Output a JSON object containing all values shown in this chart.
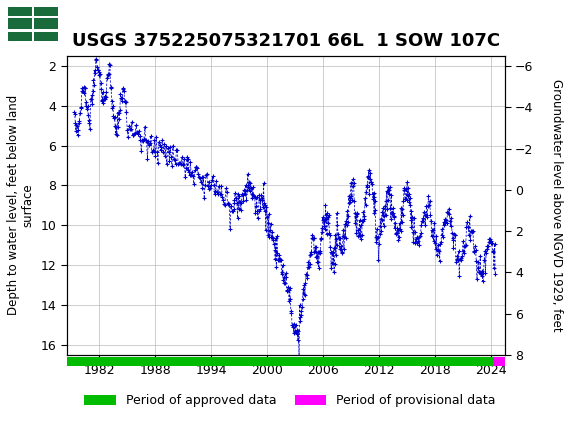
{
  "title": "USGS 375225075321701 66L  1 SOW 107C",
  "ylabel_left": "Depth to water level, feet below land\nsurface",
  "ylabel_right": "Groundwater level above NGVD 1929, feet",
  "ylim_left": [
    16.5,
    1.5
  ],
  "ylim_right": [
    6.5,
    -6.5
  ],
  "yticks_left": [
    2,
    4,
    6,
    8,
    10,
    12,
    14,
    16
  ],
  "yticks_right": [
    8,
    6,
    4,
    2,
    0,
    -2,
    -4,
    -6
  ],
  "xlim": [
    1978.5,
    2025.5
  ],
  "xticks": [
    1982,
    1988,
    1994,
    2000,
    2006,
    2012,
    2018,
    2024
  ],
  "data_color": "#0000cc",
  "approved_color": "#00bb00",
  "provisional_color": "#ff00ff",
  "background_color": "#ffffff",
  "header_color": "#1a6b3c",
  "grid_color": "#bbbbbb",
  "title_fontsize": 13,
  "axis_label_fontsize": 8.5,
  "tick_fontsize": 9,
  "legend_approved": "Period of approved data",
  "legend_provisional": "Period of provisional data",
  "fig_width": 5.8,
  "fig_height": 4.3,
  "dpi": 100
}
